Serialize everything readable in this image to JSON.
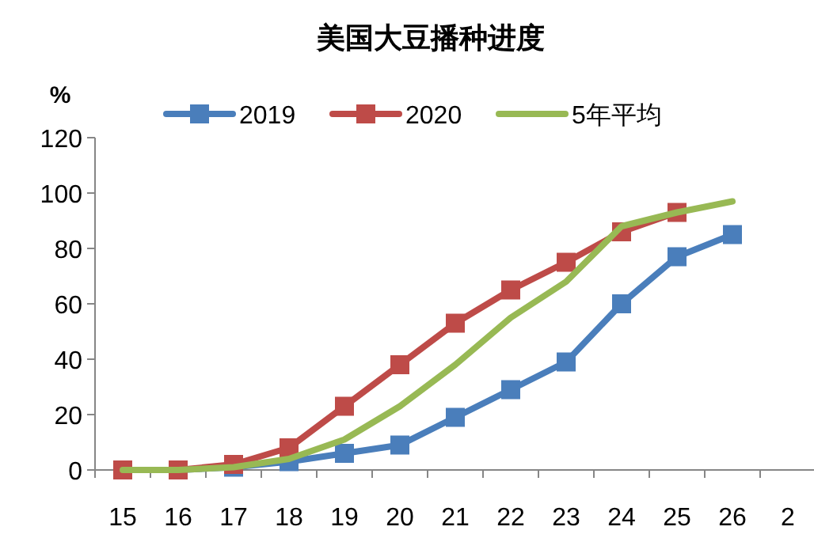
{
  "chart_data": {
    "type": "line",
    "title": "美国大豆播种进度",
    "ylabel": "%",
    "categories": [
      "15",
      "16",
      "17",
      "18",
      "19",
      "20",
      "21",
      "22",
      "23",
      "24",
      "25",
      "26",
      "2"
    ],
    "ylim": [
      0,
      120
    ],
    "yticks": [
      0,
      20,
      40,
      60,
      80,
      100,
      120
    ],
    "grid": false,
    "legend": "top",
    "line_style": "solid",
    "series": [
      {
        "name": "2019",
        "color": "#4a7ebb",
        "marker": "square",
        "values": [
          0,
          0,
          1,
          3,
          6,
          9,
          19,
          29,
          39,
          60,
          77,
          85,
          null
        ]
      },
      {
        "name": "2020",
        "color": "#be4b48",
        "marker": "square",
        "values": [
          0,
          0,
          2,
          8,
          23,
          38,
          53,
          65,
          75,
          86,
          93,
          null,
          null
        ]
      },
      {
        "name": "5年平均",
        "color": "#98b954",
        "marker": "none",
        "values": [
          0,
          0,
          1,
          4,
          11,
          23,
          38,
          55,
          68,
          88,
          93,
          97,
          null
        ]
      }
    ]
  }
}
